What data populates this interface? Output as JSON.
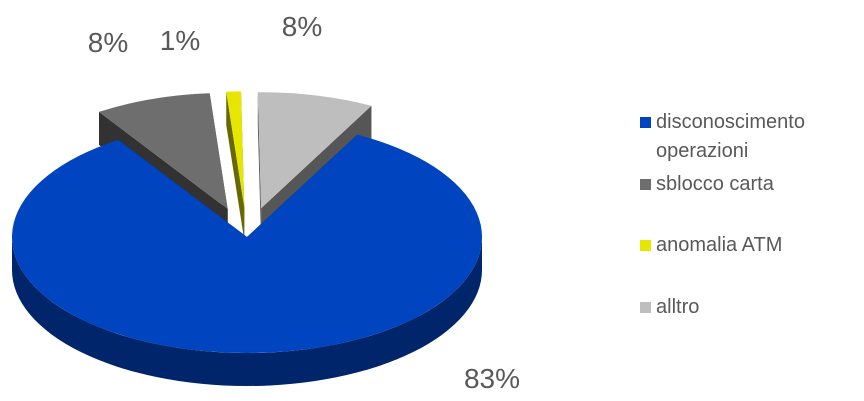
{
  "chart_data": {
    "type": "pie",
    "title": "",
    "categories": [
      "disconoscimento operazioni",
      "sblocco carta",
      "anomalia ATM",
      "alltro"
    ],
    "values": [
      83,
      8,
      1,
      8
    ],
    "labels": [
      "83%",
      "8%",
      "1%",
      "8%"
    ],
    "colors": [
      "#0044C0",
      "#6E6E6E",
      "#E6E600",
      "#BEBEBE"
    ],
    "legend_position": "right",
    "style": "3d-exploded"
  }
}
